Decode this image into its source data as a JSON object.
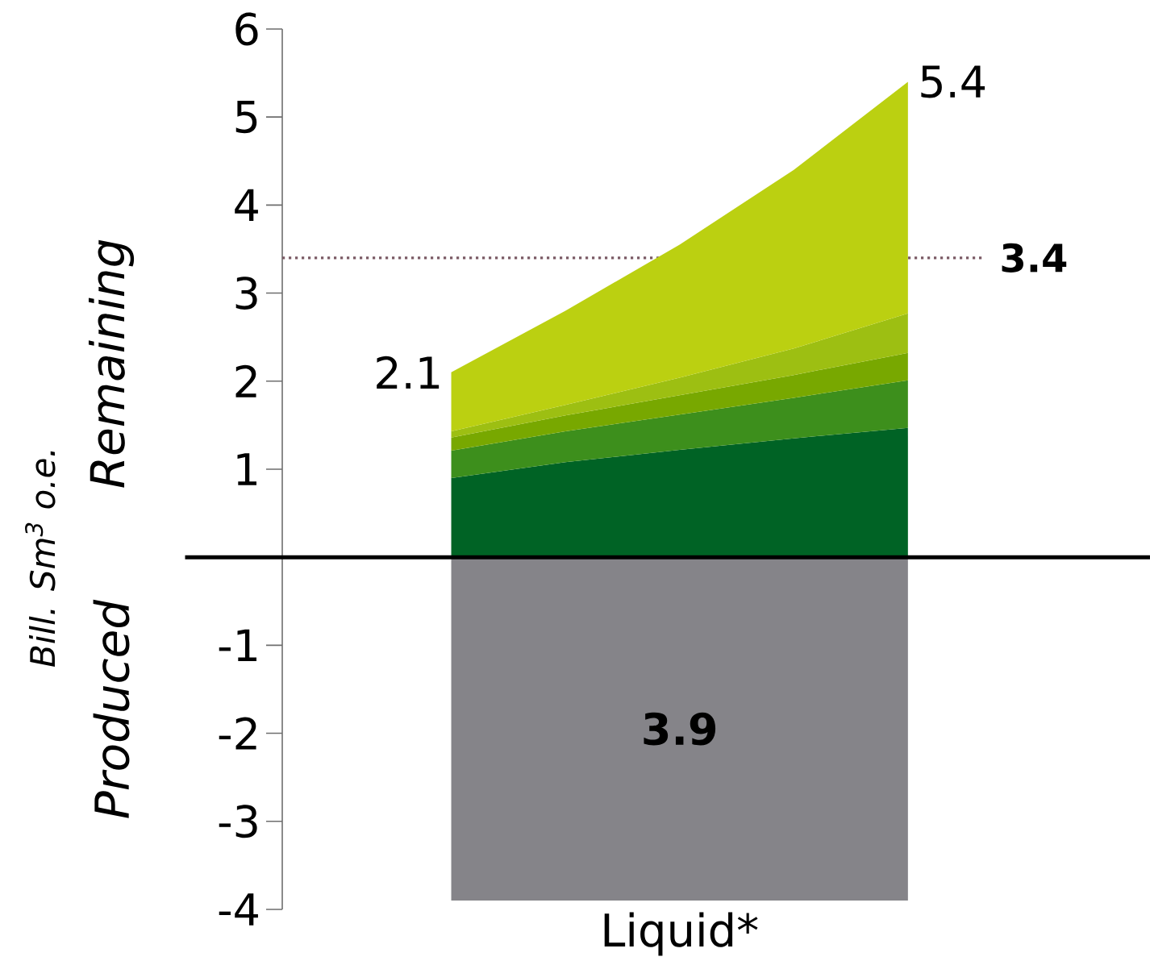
{
  "chart_data": {
    "type": "area",
    "stacked": true,
    "xlabel": "Liquid*",
    "ylabel": "Bill. Sm$^{3}$ o.e.",
    "categories": [
      null,
      null,
      null,
      null,
      null
    ],
    "ylim": [
      -4,
      6
    ],
    "yticks": [
      -4,
      -3,
      -2,
      -1,
      1,
      2,
      3,
      4,
      5,
      6
    ],
    "series": [
      {
        "color": "#006325",
        "values": [
          0.9,
          1.08,
          1.22,
          1.35,
          1.47
        ]
      },
      {
        "color": "#3d8f1c",
        "values": [
          0.31,
          0.35,
          0.4,
          0.46,
          0.54
        ]
      },
      {
        "color": "#78a800",
        "values": [
          0.15,
          0.18,
          0.22,
          0.26,
          0.31
        ]
      },
      {
        "color": "#9dbf12",
        "values": [
          0.07,
          0.12,
          0.2,
          0.3,
          0.45
        ]
      },
      {
        "color": "#bbd011",
        "values": [
          0.67,
          1.07,
          1.51,
          2.03,
          2.63
        ]
      }
    ],
    "totals": [
      "2.1",
      null,
      null,
      null,
      "5.4"
    ],
    "bands": [
      {
        "axis": "y",
        "from": -3.9,
        "to": 0,
        "label": "3.9",
        "color": "#858489"
      }
    ],
    "ref_lines": [
      {
        "axis": "y",
        "value": 3.4,
        "label": "3.4",
        "color": "#7a5a64",
        "line_style": "dotted"
      }
    ],
    "annotations": [
      "Remaining",
      "Produced"
    ]
  }
}
